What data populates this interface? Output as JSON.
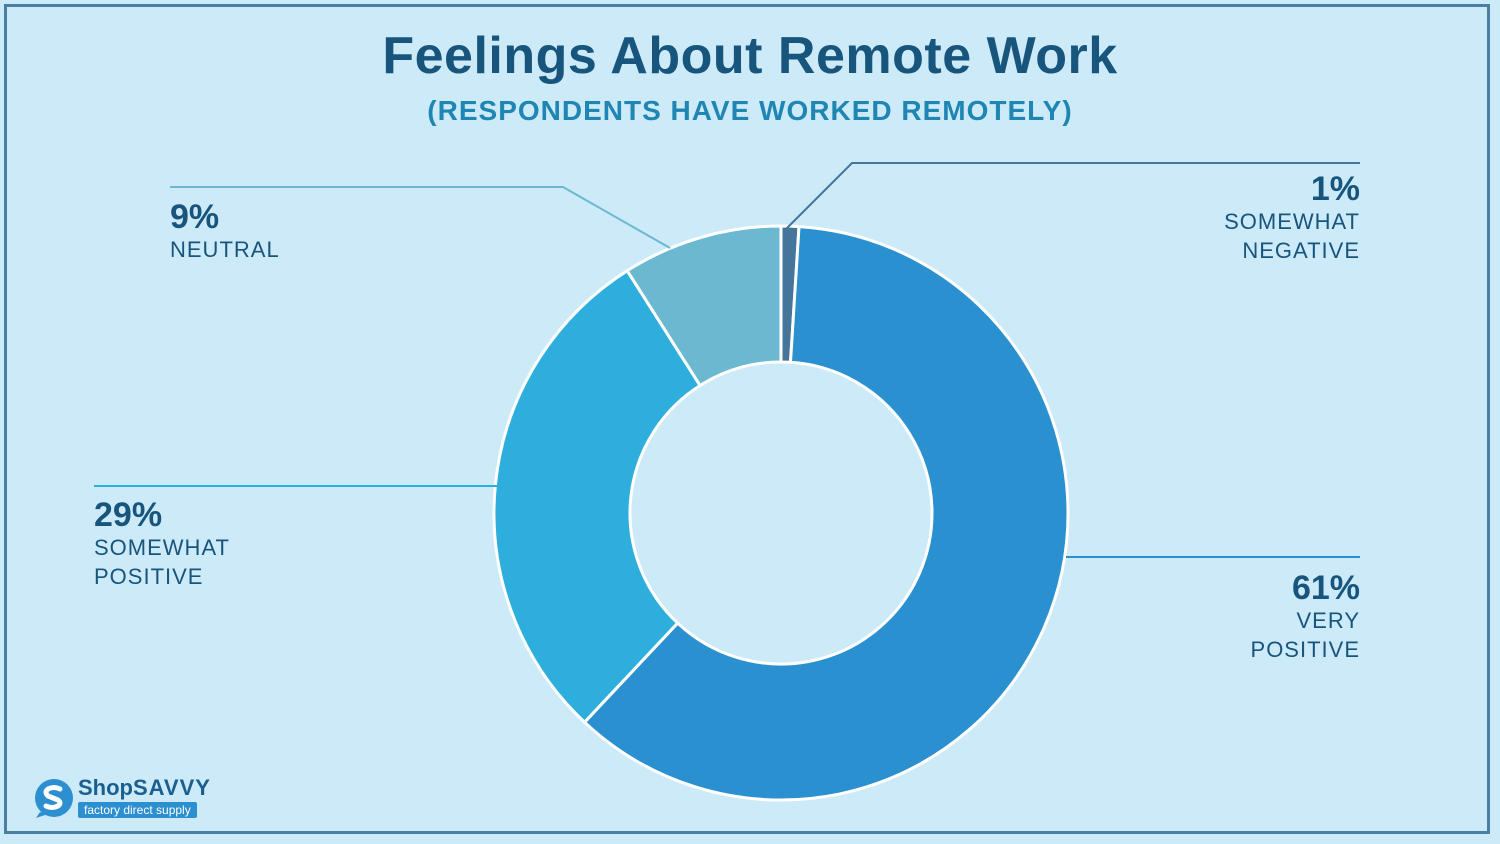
{
  "title": "Feelings About Remote Work",
  "subtitle": "(RESPONDENTS HAVE WORKED REMOTELY)",
  "logo": {
    "brand_part1": "Shop",
    "brand_part2": "SAVVY",
    "tagline": "factory direct supply"
  },
  "colors": {
    "background": "#cdeaf8",
    "title": "#17557d",
    "subtitle": "#1f86b3"
  },
  "chart_data": {
    "type": "pie",
    "style": "donut",
    "title": "Feelings About Remote Work",
    "subtitle": "(RESPONDENTS HAVE WORKED REMOTELY)",
    "slices": [
      {
        "label": "SOMEWHAT NEGATIVE",
        "value": 1,
        "display": "1%",
        "color": "#45759a"
      },
      {
        "label": "VERY POSITIVE",
        "value": 61,
        "display": "61%",
        "color": "#2b90cf"
      },
      {
        "label": "SOMEWHAT POSITIVE",
        "value": 29,
        "display": "29%",
        "color": "#2eaedd"
      },
      {
        "label": "NEUTRAL",
        "value": 9,
        "display": "9%",
        "color": "#6bb9d0"
      }
    ]
  }
}
